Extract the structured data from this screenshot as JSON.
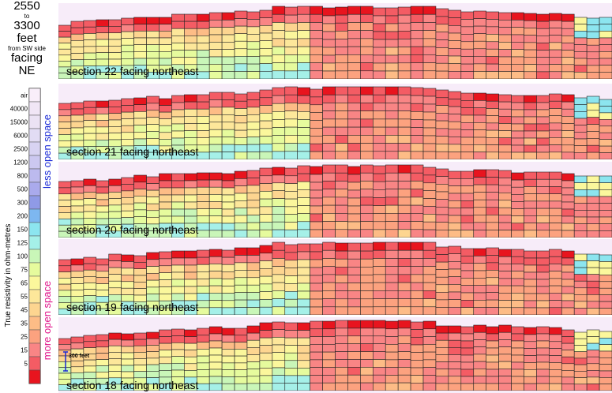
{
  "title": {
    "line1": "2550",
    "line2": "to",
    "line3": "3300",
    "line4": "feet",
    "line5": "from SW side",
    "line6": "facing",
    "line7": "NE"
  },
  "legend": {
    "axis_label": "True resistivity in ohm-metres",
    "less_label": "less open space",
    "more_label": "more open space",
    "less_color": "#1a2ad6",
    "more_color": "#e0148a",
    "levels": [
      {
        "label": "air",
        "color": "#f9eefa"
      },
      {
        "label": "40000",
        "color": "#f1e6f6"
      },
      {
        "label": "15000",
        "color": "#ebe2f4"
      },
      {
        "label": "6000",
        "color": "#e2dcf4"
      },
      {
        "label": "2500",
        "color": "#d8d3f2"
      },
      {
        "label": "1200",
        "color": "#ccc8f0"
      },
      {
        "label": "800",
        "color": "#bcbaee"
      },
      {
        "label": "500",
        "color": "#aaaaec"
      },
      {
        "label": "300",
        "color": "#8f9ae6"
      },
      {
        "label": "200",
        "color": "#7db7f0"
      },
      {
        "label": "150",
        "color": "#8ce5ef"
      },
      {
        "label": "125",
        "color": "#a5f0e8"
      },
      {
        "label": "100",
        "color": "#c9f6b8"
      },
      {
        "label": "75",
        "color": "#e6fb9d"
      },
      {
        "label": "65",
        "color": "#fbf79c"
      },
      {
        "label": "55",
        "color": "#fde79a"
      },
      {
        "label": "45",
        "color": "#fdd590"
      },
      {
        "label": "35",
        "color": "#fdbc86"
      },
      {
        "label": "25",
        "color": "#fca27f"
      },
      {
        "label": "15",
        "color": "#f98585"
      },
      {
        "label": "5",
        "color": "#f45c64"
      },
      {
        "label": "",
        "color": "#e8141e"
      }
    ]
  },
  "scale_bar_label": "300 feet",
  "chart_data": {
    "type": "heatmap",
    "description_units": "true resistivity in ohm-metres, color-coded by legend bins",
    "x_range_feet": [
      2550,
      3300
    ],
    "facing": "NE",
    "sections": [
      {
        "name": "section 22 facing northeast",
        "id": 22
      },
      {
        "name": "section 21 facing northeast",
        "id": 21
      },
      {
        "name": "section 20 facing northeast",
        "id": 20
      },
      {
        "name": "section 19 facing northeast",
        "id": 19
      },
      {
        "name": "section 18 facing northeast",
        "id": 18
      }
    ]
  }
}
